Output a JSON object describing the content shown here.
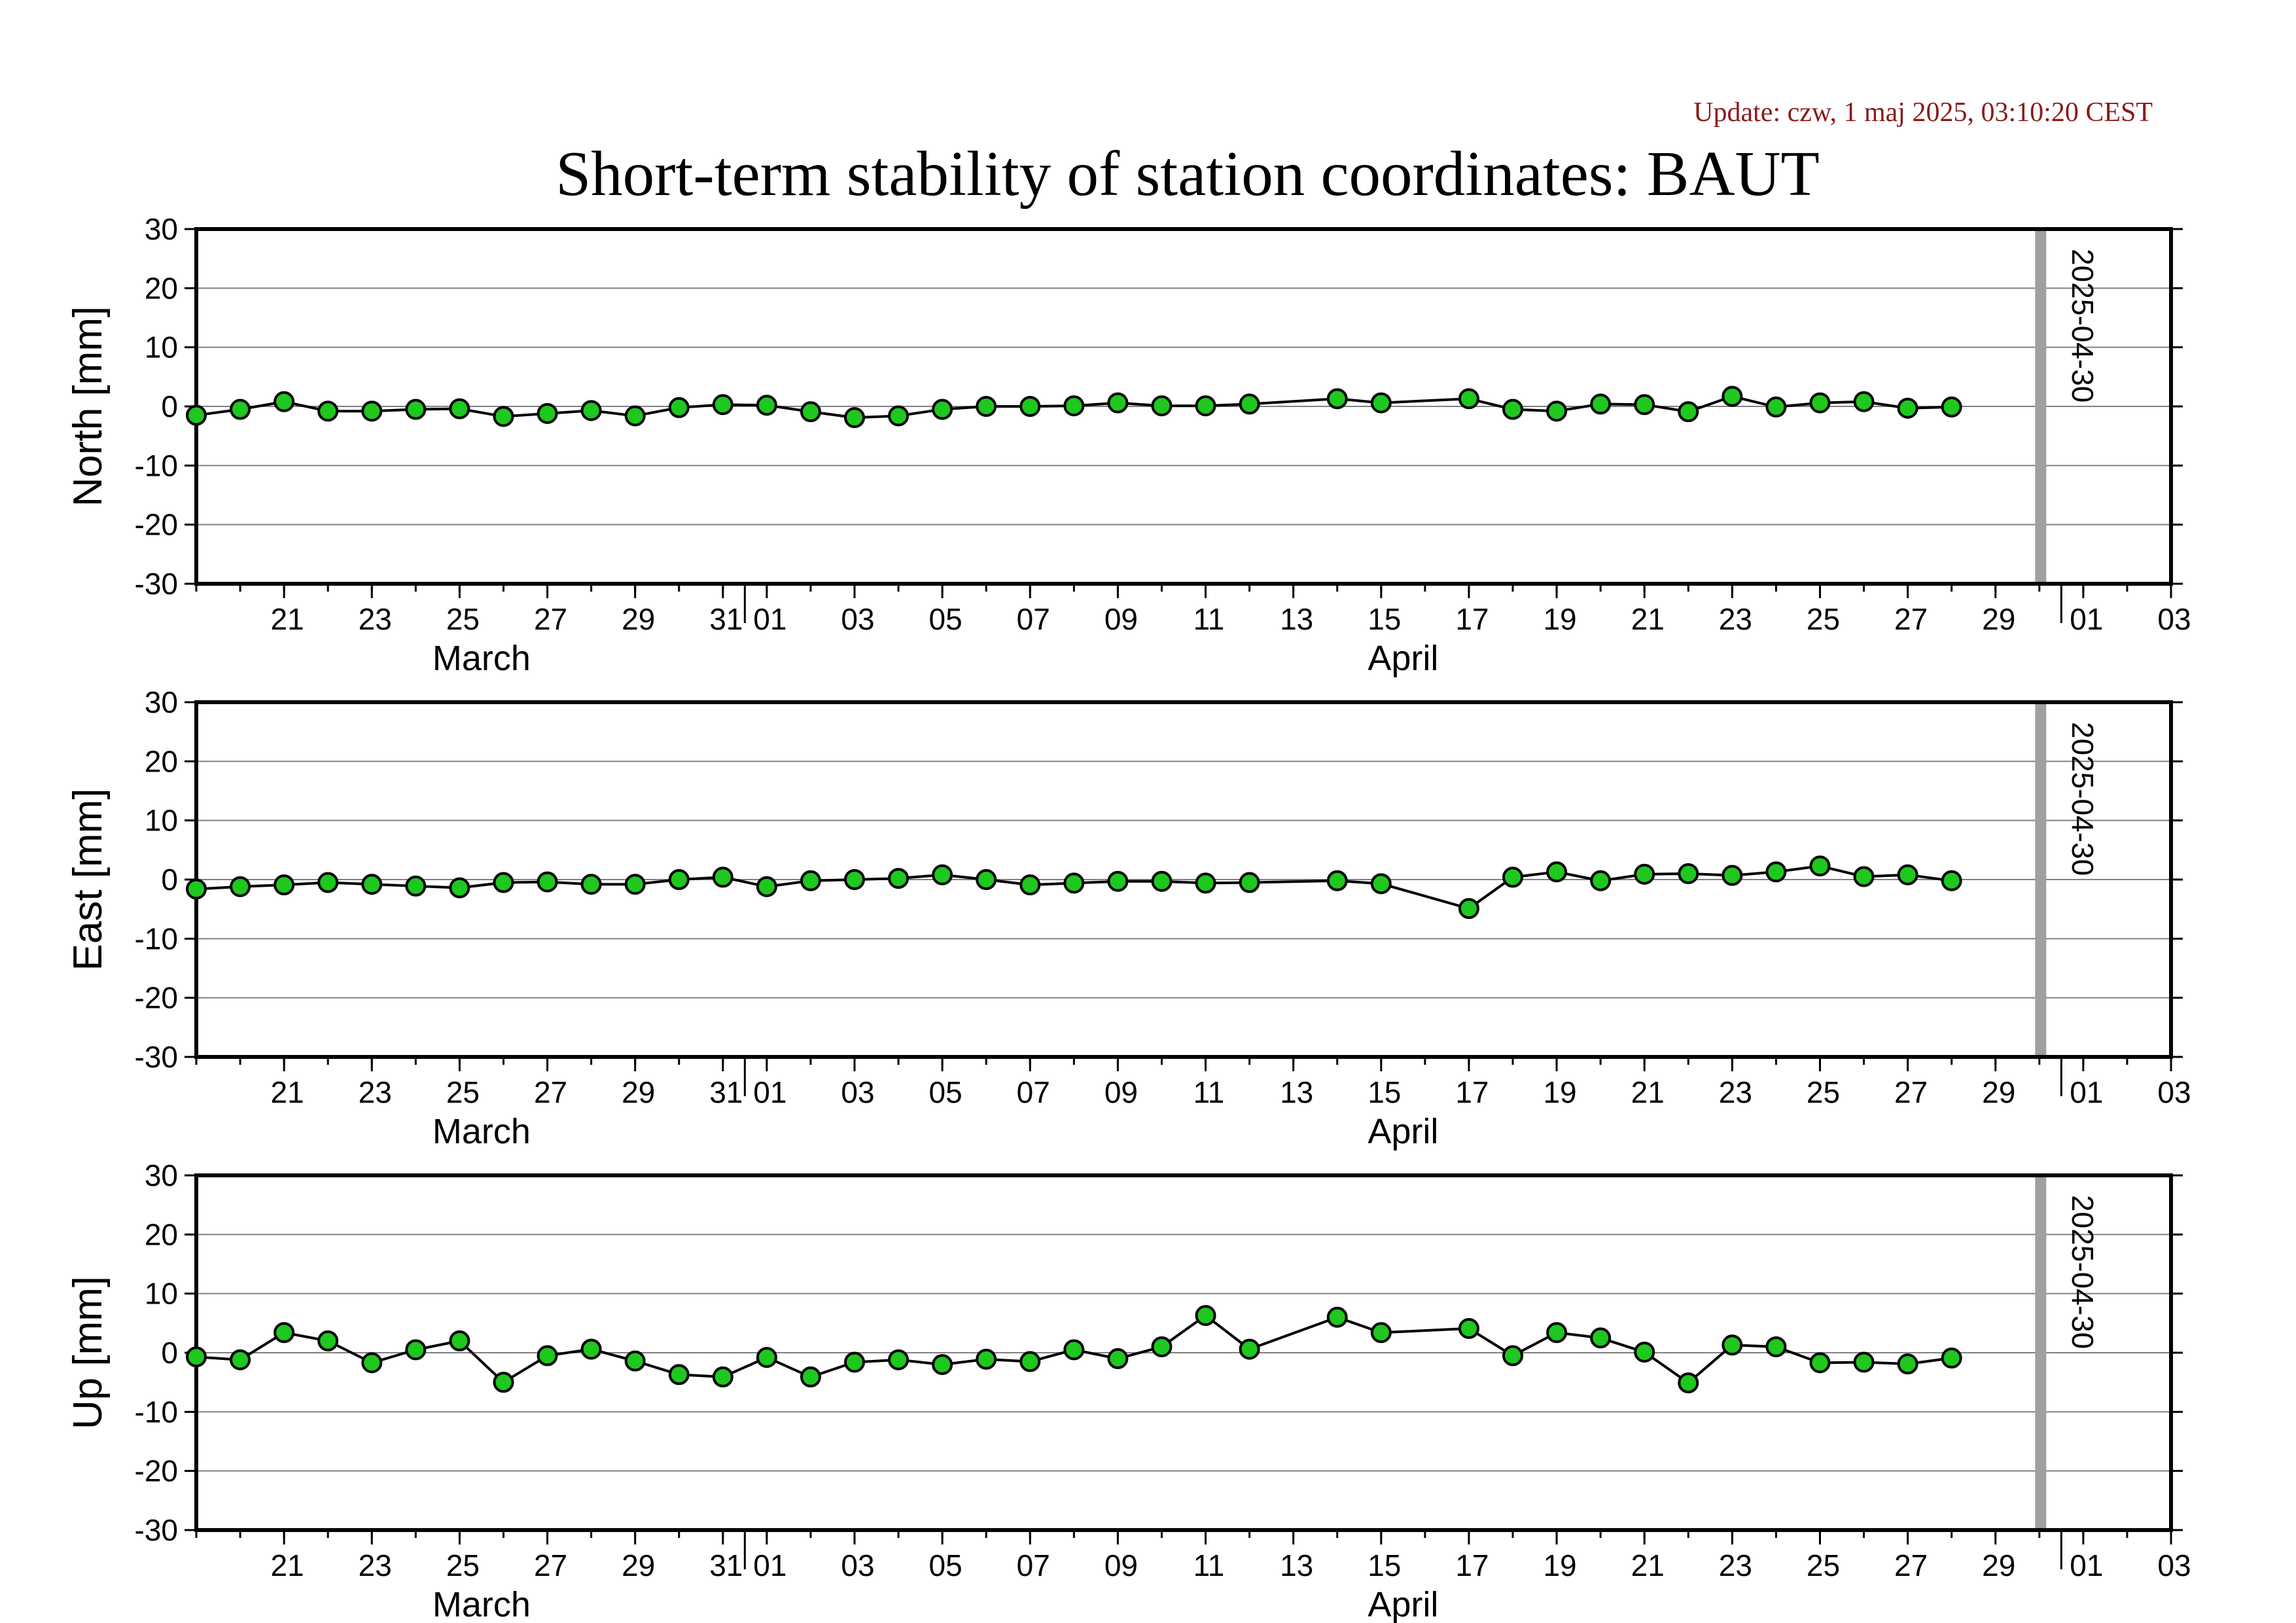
{
  "update": "Update: czw, 1 maj 2025, 03:10:20 CEST",
  "title": "Short-term stability of station coordinates: BAUT",
  "colors": {
    "point_fill": "#1ec81e",
    "point_edge": "#000000",
    "line": "#000000",
    "grid": "#808080",
    "marker": "#a0a0a0",
    "update": "#8b1a1a"
  },
  "chart_data": [
    {
      "type": "line",
      "ylabel": "North [mm]",
      "ylim": [
        -30,
        30
      ],
      "yticks": [
        30,
        20,
        10,
        0,
        -10,
        -20,
        -30
      ],
      "x_range": [
        "2025-03-19",
        "2025-05-03"
      ],
      "x_ticks": [
        "21",
        "23",
        "25",
        "27",
        "29",
        "31",
        "01",
        "03",
        "05",
        "07",
        "09",
        "11",
        "13",
        "15",
        "17",
        "19",
        "21",
        "23",
        "25",
        "27",
        "29",
        "01",
        "03"
      ],
      "months": [
        "March",
        "April"
      ],
      "grid": true,
      "marker_label": "2025-04-30",
      "series": [
        {
          "x": [
            "2025-03-19",
            "2025-03-20",
            "2025-03-21",
            "2025-03-22",
            "2025-03-23",
            "2025-03-24",
            "2025-03-25",
            "2025-03-26",
            "2025-03-27",
            "2025-03-28",
            "2025-03-29",
            "2025-03-30",
            "2025-03-31",
            "2025-04-01",
            "2025-04-02",
            "2025-04-03",
            "2025-04-04",
            "2025-04-05",
            "2025-04-06",
            "2025-04-07",
            "2025-04-08",
            "2025-04-09",
            "2025-04-10",
            "2025-04-11",
            "2025-04-12",
            "2025-04-14",
            "2025-04-15",
            "2025-04-17",
            "2025-04-18",
            "2025-04-19",
            "2025-04-20",
            "2025-04-21",
            "2025-04-22",
            "2025-04-23",
            "2025-04-24",
            "2025-04-25",
            "2025-04-26",
            "2025-04-27",
            "2025-04-28"
          ],
          "y": [
            -1.5,
            -0.5,
            0.8,
            -0.8,
            -0.8,
            -0.5,
            -0.4,
            -1.7,
            -1.2,
            -0.7,
            -1.6,
            -0.2,
            0.3,
            0.2,
            -0.9,
            -1.9,
            -1.6,
            -0.5,
            0.0,
            0.0,
            0.1,
            0.6,
            0.1,
            0.1,
            0.4,
            1.3,
            0.6,
            1.3,
            -0.5,
            -0.8,
            0.4,
            0.3,
            -0.9,
            1.7,
            -0.1,
            0.6,
            0.8,
            -0.3,
            -0.1
          ]
        }
      ]
    },
    {
      "type": "line",
      "ylabel": "East [mm]",
      "ylim": [
        -30,
        30
      ],
      "yticks": [
        30,
        20,
        10,
        0,
        -10,
        -20,
        -30
      ],
      "x_range": [
        "2025-03-19",
        "2025-05-03"
      ],
      "x_ticks": [
        "21",
        "23",
        "25",
        "27",
        "29",
        "31",
        "01",
        "03",
        "05",
        "07",
        "09",
        "11",
        "13",
        "15",
        "17",
        "19",
        "21",
        "23",
        "25",
        "27",
        "29",
        "01",
        "03"
      ],
      "months": [
        "March",
        "April"
      ],
      "grid": true,
      "marker_label": "2025-04-30",
      "series": [
        {
          "x": [
            "2025-03-19",
            "2025-03-20",
            "2025-03-21",
            "2025-03-22",
            "2025-03-23",
            "2025-03-24",
            "2025-03-25",
            "2025-03-26",
            "2025-03-27",
            "2025-03-28",
            "2025-03-29",
            "2025-03-30",
            "2025-03-31",
            "2025-04-01",
            "2025-04-02",
            "2025-04-03",
            "2025-04-04",
            "2025-04-05",
            "2025-04-06",
            "2025-04-07",
            "2025-04-08",
            "2025-04-09",
            "2025-04-10",
            "2025-04-11",
            "2025-04-12",
            "2025-04-14",
            "2025-04-15",
            "2025-04-17",
            "2025-04-18",
            "2025-04-19",
            "2025-04-20",
            "2025-04-21",
            "2025-04-22",
            "2025-04-23",
            "2025-04-24",
            "2025-04-25",
            "2025-04-26",
            "2025-04-27",
            "2025-04-28"
          ],
          "y": [
            -1.6,
            -1.2,
            -0.9,
            -0.5,
            -0.8,
            -1.1,
            -1.4,
            -0.5,
            -0.4,
            -0.8,
            -0.8,
            0.0,
            0.4,
            -1.2,
            -0.2,
            0.0,
            0.2,
            0.8,
            0.0,
            -0.9,
            -0.6,
            -0.3,
            -0.3,
            -0.6,
            -0.5,
            -0.2,
            -0.7,
            -4.9,
            0.4,
            1.3,
            -0.2,
            0.9,
            1.0,
            0.7,
            1.3,
            2.3,
            0.5,
            0.8,
            -0.2
          ]
        }
      ]
    },
    {
      "type": "line",
      "ylabel": "Up [mm]",
      "ylim": [
        -30,
        30
      ],
      "yticks": [
        30,
        20,
        10,
        0,
        -10,
        -20,
        -30
      ],
      "x_range": [
        "2025-03-19",
        "2025-05-03"
      ],
      "x_ticks": [
        "21",
        "23",
        "25",
        "27",
        "29",
        "31",
        "01",
        "03",
        "05",
        "07",
        "09",
        "11",
        "13",
        "15",
        "17",
        "19",
        "21",
        "23",
        "25",
        "27",
        "29",
        "01",
        "03"
      ],
      "months": [
        "March",
        "April"
      ],
      "grid": true,
      "marker_label": "2025-04-30",
      "series": [
        {
          "x": [
            "2025-03-19",
            "2025-03-20",
            "2025-03-21",
            "2025-03-22",
            "2025-03-23",
            "2025-03-24",
            "2025-03-25",
            "2025-03-26",
            "2025-03-27",
            "2025-03-28",
            "2025-03-29",
            "2025-03-30",
            "2025-03-31",
            "2025-04-01",
            "2025-04-02",
            "2025-04-03",
            "2025-04-04",
            "2025-04-05",
            "2025-04-06",
            "2025-04-07",
            "2025-04-08",
            "2025-04-09",
            "2025-04-10",
            "2025-04-11",
            "2025-04-12",
            "2025-04-14",
            "2025-04-15",
            "2025-04-17",
            "2025-04-18",
            "2025-04-19",
            "2025-04-20",
            "2025-04-21",
            "2025-04-22",
            "2025-04-23",
            "2025-04-24",
            "2025-04-25",
            "2025-04-26",
            "2025-04-27",
            "2025-04-28"
          ],
          "y": [
            -0.7,
            -1.2,
            3.4,
            2.0,
            -1.7,
            0.5,
            2.0,
            -5.0,
            -0.5,
            0.6,
            -1.4,
            -3.7,
            -4.1,
            -0.8,
            -4.1,
            -1.6,
            -1.2,
            -2.0,
            -1.1,
            -1.5,
            0.5,
            -1.0,
            1.0,
            6.3,
            0.6,
            6.0,
            3.4,
            4.1,
            -0.5,
            3.4,
            2.5,
            0.1,
            -5.1,
            1.3,
            1.0,
            -1.7,
            -1.6,
            -1.9,
            -0.9
          ]
        }
      ]
    }
  ]
}
